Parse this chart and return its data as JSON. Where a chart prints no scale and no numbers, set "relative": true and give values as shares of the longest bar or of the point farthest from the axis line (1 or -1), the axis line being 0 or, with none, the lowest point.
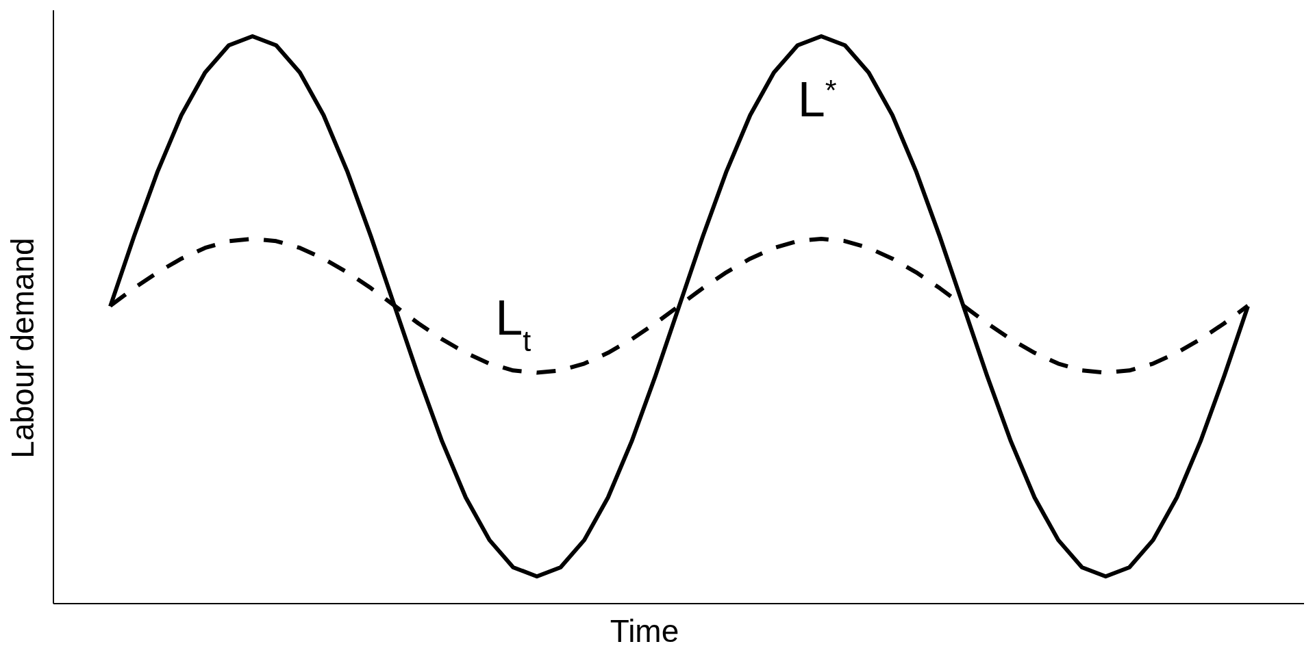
{
  "chart_data": {
    "type": "line",
    "relative": true,
    "xlabel": "Time",
    "ylabel": "Labour demand",
    "categories": [
      null,
      null,
      null,
      null,
      null,
      null,
      null,
      null,
      null,
      null,
      null,
      null,
      null,
      null,
      null,
      null,
      null,
      null,
      null,
      null,
      null,
      null,
      null,
      null,
      null,
      null,
      null,
      null,
      null,
      null,
      null,
      null,
      null,
      null,
      null,
      null,
      null,
      null,
      null,
      null,
      null,
      null,
      null,
      null,
      null,
      null,
      null,
      null,
      null
    ],
    "series": [
      {
        "name": "L$^{*}$",
        "color": "#000000",
        "line_style": "solid",
        "values": [
          0.524,
          0.647,
          0.762,
          0.861,
          0.936,
          0.984,
          1,
          0.984,
          0.936,
          0.861,
          0.762,
          0.647,
          0.524,
          0.401,
          0.286,
          0.187,
          0.112,
          0.064,
          0.048,
          0.064,
          0.112,
          0.187,
          0.286,
          0.401,
          0.524,
          0.647,
          0.762,
          0.861,
          0.936,
          0.984,
          1,
          0.984,
          0.936,
          0.861,
          0.762,
          0.647,
          0.524,
          0.401,
          0.286,
          0.187,
          0.112,
          0.064,
          0.048,
          0.064,
          0.112,
          0.187,
          0.286,
          0.401,
          0.524
        ]
      },
      {
        "name": "L$_{t}$",
        "color": "#000000",
        "line_style": "dashed",
        "values": [
          0.525,
          0.556,
          0.584,
          0.608,
          0.627,
          0.639,
          0.643,
          0.639,
          0.627,
          0.608,
          0.584,
          0.556,
          0.525,
          0.494,
          0.466,
          0.442,
          0.423,
          0.411,
          0.407,
          0.411,
          0.423,
          0.442,
          0.466,
          0.494,
          0.525,
          0.556,
          0.584,
          0.608,
          0.627,
          0.639,
          0.643,
          0.639,
          0.627,
          0.608,
          0.584,
          0.556,
          0.525,
          0.494,
          0.466,
          0.442,
          0.423,
          0.411,
          0.407,
          0.411,
          0.423,
          0.442,
          0.466,
          0.494,
          0.525
        ]
      }
    ]
  }
}
